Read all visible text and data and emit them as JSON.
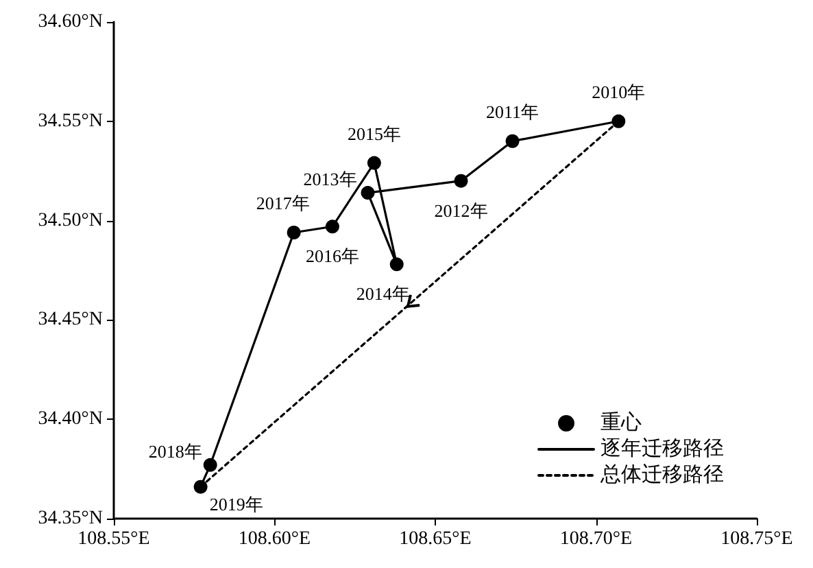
{
  "chart_data": {
    "type": "scatter",
    "grid": false,
    "legend": "bottom right",
    "xlim": [
      108.55,
      108.75
    ],
    "ylim": [
      34.35,
      34.6
    ],
    "xticks": [
      {
        "value": 108.55,
        "label": "108.55°E"
      },
      {
        "value": 108.6,
        "label": "108.60°E"
      },
      {
        "value": 108.65,
        "label": "108.65°E"
      },
      {
        "value": 108.7,
        "label": "108.70°E"
      },
      {
        "value": 108.75,
        "label": "108.75°E"
      }
    ],
    "yticks": [
      {
        "value": 34.35,
        "label": "34.35°N"
      },
      {
        "value": 34.4,
        "label": "34.40°N"
      },
      {
        "value": 34.45,
        "label": "34.45°N"
      },
      {
        "value": 34.5,
        "label": "34.50°N"
      },
      {
        "value": 34.55,
        "label": "34.55°N"
      },
      {
        "value": 34.6,
        "label": "34.60°N"
      }
    ],
    "annotations": [
      {
        "text": "2010年",
        "x": 108.707,
        "y": 34.55
      },
      {
        "text": "2011年",
        "x": 108.674,
        "y": 34.54
      },
      {
        "text": "2012年",
        "x": 108.658,
        "y": 34.52
      },
      {
        "text": "2013年",
        "x": 108.629,
        "y": 34.514
      },
      {
        "text": "2014年",
        "x": 108.638,
        "y": 34.478
      },
      {
        "text": "2015年",
        "x": 108.631,
        "y": 34.529
      },
      {
        "text": "2016年",
        "x": 108.618,
        "y": 34.497
      },
      {
        "text": "2017年",
        "x": 108.606,
        "y": 34.494
      },
      {
        "text": "2018年",
        "x": 108.58,
        "y": 34.377
      },
      {
        "text": "2019年",
        "x": 108.577,
        "y": 34.366
      }
    ],
    "series": [
      {
        "name": "重心",
        "color": "#000000",
        "marker": "circle",
        "x": [
          108.707,
          108.674,
          108.658,
          108.629,
          108.638,
          108.631,
          108.618,
          108.606,
          108.58,
          108.577
        ],
        "values": [
          34.55,
          34.54,
          34.52,
          34.514,
          34.478,
          34.529,
          34.497,
          34.494,
          34.377,
          34.366
        ]
      },
      {
        "name": "逐年迁移路径",
        "type": "line",
        "color": "#000000",
        "line_style": "solid",
        "x": [
          108.707,
          108.674,
          108.658,
          108.629,
          108.638,
          108.631,
          108.618,
          108.606,
          108.58,
          108.577
        ],
        "values": [
          34.55,
          34.54,
          34.52,
          34.514,
          34.478,
          34.529,
          34.497,
          34.494,
          34.377,
          34.366
        ]
      },
      {
        "name": "总体迁移路径",
        "type": "line",
        "color": "#000000",
        "line_style": "dashed",
        "x": [
          108.707,
          108.577
        ],
        "values": [
          34.55,
          34.366
        ]
      }
    ]
  }
}
